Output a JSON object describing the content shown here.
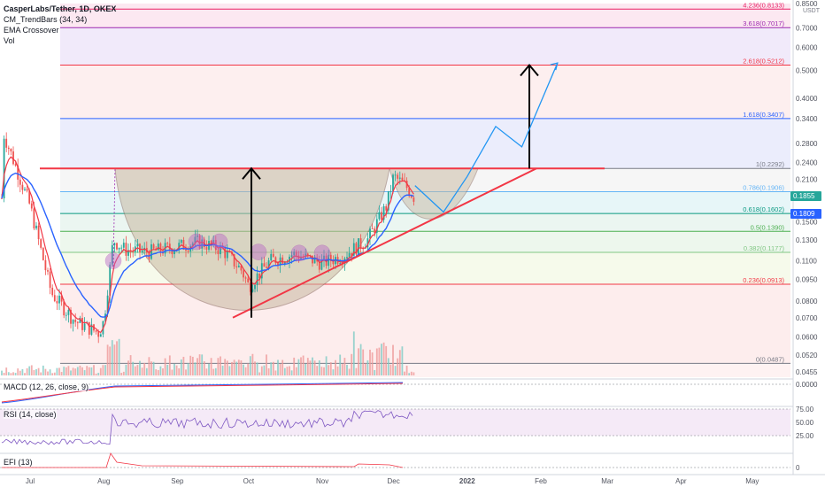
{
  "legend": {
    "symbol": "CasperLabs/Tether, 1D, OKEX",
    "ind1": "CM_TrendBars (34, 34)",
    "ind2": "EMA Crossover",
    "ind3": "Vol"
  },
  "panes": {
    "macd_label": "MACD (12, 26, close, 9)",
    "rsi_label": "RSI (14, close)",
    "efi_label": "EFI (13)"
  },
  "axis": {
    "currency": "USDT",
    "current_price_label": "0.1809",
    "current_price": 0.1809,
    "countdown_label": "0.1855",
    "price_ticks": [
      {
        "v": 0.85,
        "label": "0.8500"
      },
      {
        "v": 0.7,
        "label": "0.7000"
      },
      {
        "v": 0.6,
        "label": "0.6000"
      },
      {
        "v": 0.5,
        "label": "0.5000"
      },
      {
        "v": 0.4,
        "label": "0.4000"
      },
      {
        "v": 0.34,
        "label": "0.3400"
      },
      {
        "v": 0.28,
        "label": "0.2800"
      },
      {
        "v": 0.24,
        "label": "0.2400"
      },
      {
        "v": 0.21,
        "label": "0.2100"
      },
      {
        "v": 0.15,
        "label": "0.1500"
      },
      {
        "v": 0.13,
        "label": "0.1300"
      },
      {
        "v": 0.11,
        "label": "0.1100"
      },
      {
        "v": 0.095,
        "label": "0.0950"
      },
      {
        "v": 0.08,
        "label": "0.0800"
      },
      {
        "v": 0.07,
        "label": "0.0700"
      },
      {
        "v": 0.06,
        "label": "0.0600"
      },
      {
        "v": 0.052,
        "label": "0.0520"
      },
      {
        "v": 0.0455,
        "label": "0.0455"
      }
    ],
    "macd_tick": "0.0000",
    "rsi_ticks": [
      "75.00",
      "50.00",
      "25.00"
    ],
    "efi_tick": "0",
    "x_labels": [
      {
        "date": "2021-07-01",
        "label": "Jul"
      },
      {
        "date": "2021-08-01",
        "label": "Aug"
      },
      {
        "date": "2021-09-01",
        "label": "Sep"
      },
      {
        "date": "2021-10-01",
        "label": "Oct"
      },
      {
        "date": "2021-11-01",
        "label": "Nov"
      },
      {
        "date": "2021-12-01",
        "label": "Dec"
      },
      {
        "date": "2022-01-01",
        "label": "2022"
      },
      {
        "date": "2022-02-01",
        "label": "Feb"
      },
      {
        "date": "2022-03-01",
        "label": "Mar"
      },
      {
        "date": "2022-04-01",
        "label": "Apr"
      },
      {
        "date": "2022-05-01",
        "label": "May"
      }
    ]
  },
  "fib_levels": [
    {
      "label": "0(0.0487)",
      "price": 0.0487,
      "color": "#787b86",
      "fill": "#fdeaea"
    },
    {
      "label": "0.236(0.0913)",
      "price": 0.0913,
      "color": "#f23645",
      "fill": "#f4f9e8"
    },
    {
      "label": "0.382(0.1177)",
      "price": 0.1177,
      "color": "#81c784",
      "fill": "#eaf6ea"
    },
    {
      "label": "0.5(0.1390)",
      "price": 0.139,
      "color": "#4caf50",
      "fill": "#e8f5ef"
    },
    {
      "label": "0.618(0.1602)",
      "price": 0.1602,
      "color": "#089981",
      "fill": "#e3f4f7"
    },
    {
      "label": "0.786(0.1906)",
      "price": 0.1906,
      "color": "#64b5f6",
      "fill": "#f5f5f5"
    },
    {
      "label": "1(0.2292)",
      "price": 0.2292,
      "color": "#787b86",
      "fill": "#e8eafb"
    },
    {
      "label": "1.618(0.3407)",
      "price": 0.3407,
      "color": "#2962ff",
      "fill": "#fdecec"
    },
    {
      "label": "2.618(0.5212)",
      "price": 0.5212,
      "color": "#f23645",
      "fill": "#efe6f9"
    },
    {
      "label": "3.618(0.7017)",
      "price": 0.7017,
      "color": "#9c27b0",
      "fill": "#fbe4ee"
    },
    {
      "label": "4.236(0.8133)",
      "price": 0.8133,
      "color": "#e91e63",
      "fill": "#fbe4ee"
    }
  ],
  "chart_data": {
    "type": "candlestick",
    "title": "CasperLabs/Tether, 1D, OKEX",
    "x": [
      "2021-06-20",
      "2021-07-01",
      "2021-07-10",
      "2021-07-20",
      "2021-07-30",
      "2021-08-01",
      "2021-08-05",
      "2021-08-10",
      "2021-08-20",
      "2021-09-01",
      "2021-09-10",
      "2021-09-20",
      "2021-09-28",
      "2021-10-01",
      "2021-10-10",
      "2021-10-20",
      "2021-11-01",
      "2021-11-10",
      "2021-11-20",
      "2021-11-28",
      "2021-12-01",
      "2021-12-06",
      "2021-12-10"
    ],
    "close": [
      0.3,
      0.17,
      0.085,
      0.068,
      0.062,
      0.068,
      0.13,
      0.12,
      0.118,
      0.123,
      0.128,
      0.12,
      0.102,
      0.09,
      0.11,
      0.116,
      0.108,
      0.115,
      0.13,
      0.17,
      0.215,
      0.2,
      0.1809
    ],
    "series": [
      {
        "name": "EMA fast",
        "color": "#f23645"
      },
      {
        "name": "EMA slow",
        "color": "#2962ff"
      }
    ],
    "ylim": [
      0.0455,
      0.85
    ],
    "y_scale": "log",
    "grid": false
  }
}
